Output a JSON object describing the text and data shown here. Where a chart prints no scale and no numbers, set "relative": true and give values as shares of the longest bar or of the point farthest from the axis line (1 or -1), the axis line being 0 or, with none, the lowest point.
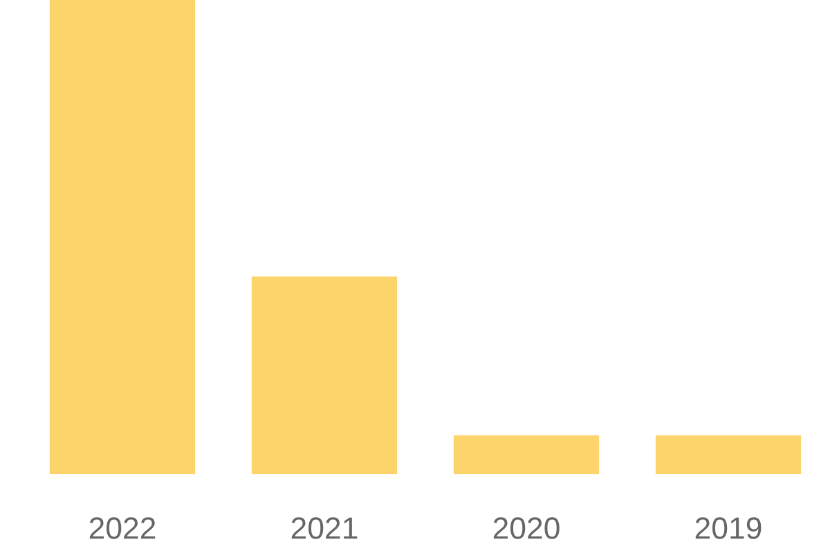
{
  "chart_data": {
    "type": "bar",
    "relative": true,
    "categories": [
      "2022",
      "2021",
      "2020",
      "2019"
    ],
    "values": [
      1,
      0.417,
      0.082,
      0.082
    ],
    "color": "#fdd46b"
  }
}
